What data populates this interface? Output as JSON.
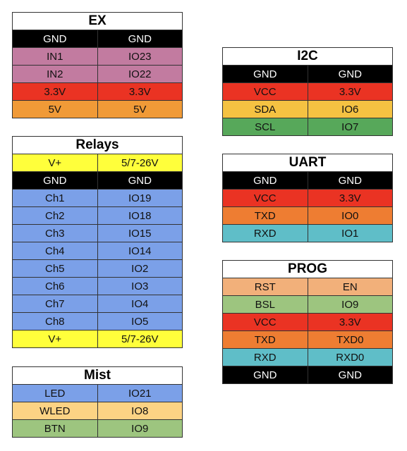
{
  "colors": {
    "black": "#000000",
    "pink": "#c27ba0",
    "red": "#ea3323",
    "orange": "#f09a37",
    "yellow": "#ffff3b",
    "blue": "#7ba0e8",
    "light_orange": "#fcd384",
    "green_light": "#9dc57f",
    "amber": "#f5c242",
    "green": "#57a85a",
    "orange_dark": "#ee7d32",
    "teal": "#5fbec8",
    "peach": "#f2b07a"
  },
  "tables": [
    {
      "id": "ex",
      "title": "EX",
      "rows": [
        {
          "a": "GND",
          "b": "GND",
          "color": "black"
        },
        {
          "a": "IN1",
          "b": "IO23",
          "color": "pink"
        },
        {
          "a": "IN2",
          "b": "IO22",
          "color": "pink"
        },
        {
          "a": "3.3V",
          "b": "3.3V",
          "color": "red"
        },
        {
          "a": "5V",
          "b": "5V",
          "color": "orange"
        }
      ]
    },
    {
      "id": "relays",
      "title": "Relays",
      "rows": [
        {
          "a": "V+",
          "b": "5/7-26V",
          "color": "yellow"
        },
        {
          "a": "GND",
          "b": "GND",
          "color": "black"
        },
        {
          "a": "Ch1",
          "b": "IO19",
          "color": "blue"
        },
        {
          "a": "Ch2",
          "b": "IO18",
          "color": "blue"
        },
        {
          "a": "Ch3",
          "b": "IO15",
          "color": "blue"
        },
        {
          "a": "Ch4",
          "b": "IO14",
          "color": "blue"
        },
        {
          "a": "Ch5",
          "b": "IO2",
          "color": "blue"
        },
        {
          "a": "Ch6",
          "b": "IO3",
          "color": "blue"
        },
        {
          "a": "Ch7",
          "b": "IO4",
          "color": "blue"
        },
        {
          "a": "Ch8",
          "b": "IO5",
          "color": "blue"
        },
        {
          "a": "V+",
          "b": "5/7-26V",
          "color": "yellow"
        }
      ]
    },
    {
      "id": "mist",
      "title": "Mist",
      "rows": [
        {
          "a": "LED",
          "b": "IO21",
          "color": "blue"
        },
        {
          "a": "WLED",
          "b": "IO8",
          "color": "light_orange"
        },
        {
          "a": "BTN",
          "b": "IO9",
          "color": "green_light"
        }
      ]
    },
    {
      "id": "i2c",
      "title": "I2C",
      "rows": [
        {
          "a": "GND",
          "b": "GND",
          "color": "black"
        },
        {
          "a": "VCC",
          "b": "3.3V",
          "color": "red"
        },
        {
          "a": "SDA",
          "b": "IO6",
          "color": "amber"
        },
        {
          "a": "SCL",
          "b": "IO7",
          "color": "green"
        }
      ]
    },
    {
      "id": "uart",
      "title": "UART",
      "rows": [
        {
          "a": "GND",
          "b": "GND",
          "color": "black"
        },
        {
          "a": "VCC",
          "b": "3.3V",
          "color": "red"
        },
        {
          "a": "TXD",
          "b": "IO0",
          "color": "orange_dark"
        },
        {
          "a": "RXD",
          "b": "IO1",
          "color": "teal"
        }
      ]
    },
    {
      "id": "prog",
      "title": "PROG",
      "rows": [
        {
          "a": "RST",
          "b": "EN",
          "color": "peach"
        },
        {
          "a": "BSL",
          "b": "IO9",
          "color": "green_light"
        },
        {
          "a": "VCC",
          "b": "3.3V",
          "color": "red"
        },
        {
          "a": "TXD",
          "b": "TXD0",
          "color": "orange_dark"
        },
        {
          "a": "RXD",
          "b": "RXD0",
          "color": "teal"
        },
        {
          "a": "GND",
          "b": "GND",
          "color": "black"
        }
      ]
    }
  ]
}
